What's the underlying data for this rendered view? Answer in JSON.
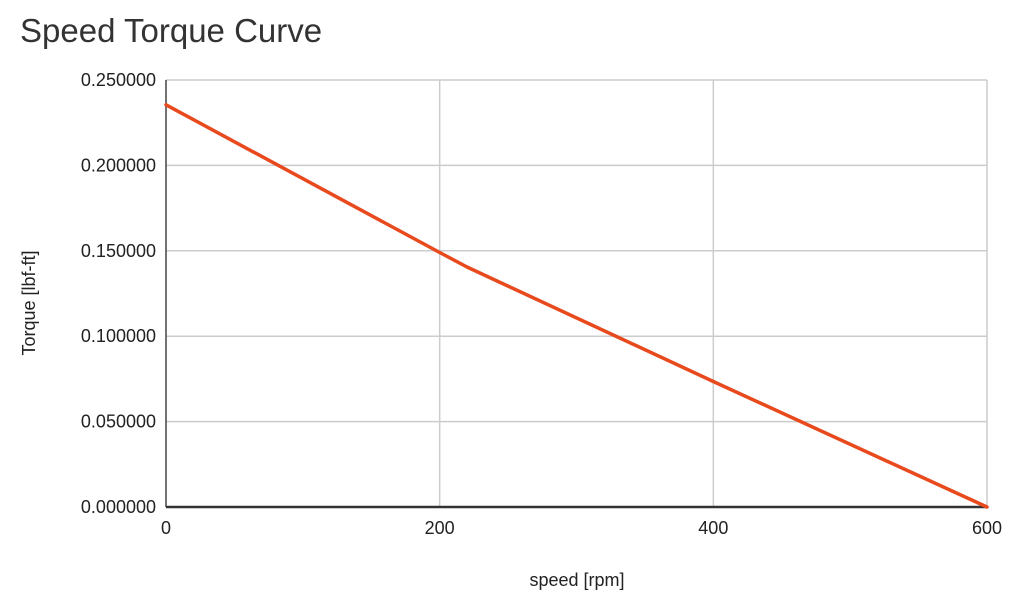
{
  "chart_data": {
    "type": "line",
    "title": "Speed Torque Curve",
    "xlabel": "speed [rpm]",
    "ylabel": "Torque [lbf-ft]",
    "xlim": [
      0,
      600
    ],
    "ylim": [
      0,
      0.25
    ],
    "x_ticks": [
      "0",
      "200",
      "400",
      "600"
    ],
    "y_ticks": [
      "0.000000",
      "0.050000",
      "0.100000",
      "0.150000",
      "0.200000",
      "0.250000"
    ],
    "grid": true,
    "legend": "none",
    "series": [
      {
        "color": "#e8491d",
        "x": [
          0,
          200,
          220,
          400,
          600
        ],
        "y": [
          0.2355,
          0.149,
          0.1405,
          0.0735,
          0.0
        ]
      }
    ]
  }
}
